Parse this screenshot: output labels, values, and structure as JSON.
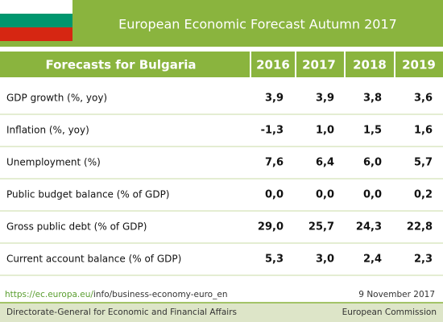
{
  "header": {
    "title": "European Economic Forecast Autumn 2017"
  },
  "table": {
    "columns": [
      "Forecasts for Bulgaria",
      "2016",
      "2017",
      "2018",
      "2019"
    ],
    "rows": [
      [
        "GDP growth (%, yoy)",
        "3,9",
        "3,9",
        "3,8",
        "3,6"
      ],
      [
        "Inflation (%, yoy)",
        "-1,3",
        "1,0",
        "1,5",
        "1,6"
      ],
      [
        "Unemployment (%)",
        "7,6",
        "6,4",
        "6,0",
        "5,7"
      ],
      [
        "Public budget balance (% of GDP)",
        "0,0",
        "0,0",
        "0,0",
        "0,2"
      ],
      [
        "Gross public debt (% of GDP)",
        "29,0",
        "25,7",
        "24,3",
        "22,8"
      ],
      [
        "Current account balance (% of GDP)",
        "5,3",
        "3,0",
        "2,4",
        "2,3"
      ]
    ]
  },
  "footer": {
    "url_domain": "https://ec.europa.eu/",
    "url_path": "info/business-economy-euro_en",
    "date": "9 November 2017",
    "left": "Directorate-General for Economic and Financial Affairs",
    "right": "European Commission"
  }
}
